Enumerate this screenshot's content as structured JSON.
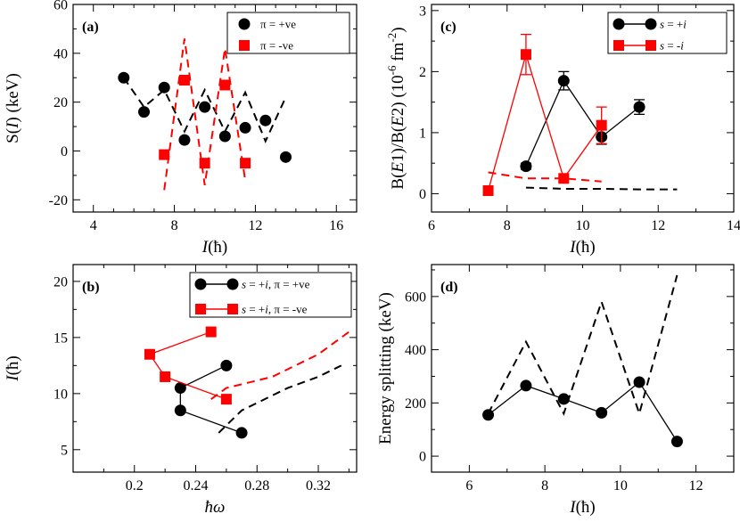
{
  "figure": {
    "width": 830,
    "height": 586
  },
  "chart_data": [
    {
      "id": "a",
      "panel_label": "(a)",
      "type": "scatter",
      "xlabel": "I(ħ)",
      "ylabel": "S(I) (keV)",
      "xlim": [
        3,
        17
      ],
      "ylim": [
        -25,
        60
      ],
      "xticks": [
        4,
        8,
        12,
        16
      ],
      "yticks": [
        -20,
        0,
        20,
        40,
        60
      ],
      "xticks_minor": [
        5,
        6,
        7,
        9,
        10,
        11,
        13,
        14,
        15
      ],
      "yticks_minor": [
        -10,
        10,
        30,
        50
      ],
      "legend_position": "top-right",
      "series": [
        {
          "name": "π = +ve",
          "marker": "circle",
          "color": "#000000",
          "x": [
            5.5,
            6.5,
            7.5,
            8.5,
            9.5,
            10.5,
            11.5,
            12.5,
            13.5
          ],
          "y": [
            30,
            16,
            26,
            4.5,
            18,
            6,
            9.5,
            12.5,
            -2.5
          ]
        },
        {
          "name": "π = -ve",
          "marker": "square",
          "color": "#ff0000",
          "x": [
            7.5,
            8.5,
            9.5,
            10.5,
            11.5
          ],
          "y": [
            -1.5,
            29,
            -5,
            27,
            -5
          ]
        },
        {
          "name": "calc π = +ve",
          "line": "dashed",
          "color": "#000000",
          "legend": false,
          "x": [
            5.5,
            6.5,
            7.5,
            8.5,
            9.5,
            10.5,
            11.5,
            12.5,
            13.5
          ],
          "y": [
            30,
            18,
            25,
            8,
            25,
            8,
            24,
            4,
            22
          ]
        },
        {
          "name": "calc π = -ve",
          "line": "dashed",
          "color": "#ff0000",
          "legend": false,
          "x": [
            7.5,
            8.5,
            9.5,
            10.5,
            11.5
          ],
          "y": [
            -16,
            46,
            -14,
            42,
            -12
          ]
        }
      ]
    },
    {
      "id": "b",
      "panel_label": "(b)",
      "type": "line",
      "xlabel": "ħω",
      "ylabel": "I(ħ)",
      "xlim": [
        0.16,
        0.345
      ],
      "ylim": [
        3,
        21.5
      ],
      "xticks": [
        0.2,
        0.24,
        0.28,
        0.32
      ],
      "yticks": [
        5,
        10,
        15,
        20
      ],
      "xticks_minor": [
        0.18,
        0.22,
        0.26,
        0.3,
        0.34
      ],
      "yticks_minor": [
        7.5,
        12.5,
        17.5
      ],
      "legend_position": "top-right",
      "series": [
        {
          "name": "s = +i, π = +ve",
          "marker": "circle",
          "line": "solid",
          "color": "#000000",
          "x": [
            0.27,
            0.23,
            0.23,
            0.26
          ],
          "y": [
            6.5,
            8.5,
            10.5,
            12.5
          ]
        },
        {
          "name": "s = +i, π = -ve",
          "marker": "square",
          "line": "solid",
          "color": "#ff0000",
          "x": [
            0.26,
            0.22,
            0.21,
            0.25
          ],
          "y": [
            9.5,
            11.5,
            13.5,
            15.5
          ]
        },
        {
          "name": "calc black",
          "line": "dashed",
          "color": "#000000",
          "legend": false,
          "x": [
            0.255,
            0.27,
            0.3,
            0.32,
            0.335
          ],
          "y": [
            6.5,
            8.5,
            10.5,
            11.5,
            12.5
          ]
        },
        {
          "name": "calc red",
          "line": "dashed",
          "color": "#ff0000",
          "legend": false,
          "x": [
            0.25,
            0.26,
            0.29,
            0.32,
            0.34
          ],
          "y": [
            9.5,
            10.5,
            11.5,
            13.5,
            15.5
          ]
        }
      ]
    },
    {
      "id": "c",
      "panel_label": "(c)",
      "type": "line",
      "xlabel": "I(ħ)",
      "ylabel": "B(E1)/B(E2) (10⁻⁶ fm⁻²)",
      "xlim": [
        6,
        14
      ],
      "ylim": [
        -0.3,
        3.1
      ],
      "xticks": [
        6,
        8,
        10,
        12,
        14
      ],
      "yticks": [
        0,
        1,
        2,
        3
      ],
      "xticks_minor": [
        7,
        9,
        11,
        13
      ],
      "yticks_minor": [
        0.5,
        1.5,
        2.5
      ],
      "legend_position": "top-right",
      "series": [
        {
          "name": "s = +i",
          "marker": "circle",
          "line": "solid",
          "color": "#000000",
          "x": [
            8.5,
            9.5,
            10.5,
            11.5
          ],
          "y": [
            0.45,
            1.85,
            0.93,
            1.42
          ],
          "err": [
            0.05,
            0.15,
            0.12,
            0.12
          ]
        },
        {
          "name": "s = -i",
          "marker": "square",
          "line": "solid",
          "color": "#ff0000",
          "x": [
            7.5,
            8.5,
            9.5,
            10.5
          ],
          "y": [
            0.05,
            2.28,
            0.25,
            1.12
          ],
          "err": [
            0.05,
            0.33,
            0.05,
            0.3
          ]
        },
        {
          "name": "calc black",
          "line": "dashed",
          "color": "#000000",
          "legend": false,
          "x": [
            8.5,
            9.5,
            10.5,
            11.5,
            12.5
          ],
          "y": [
            0.1,
            0.08,
            0.08,
            0.07,
            0.07
          ]
        },
        {
          "name": "calc red",
          "line": "dashed",
          "color": "#ff0000",
          "legend": false,
          "x": [
            7.5,
            8.5,
            9.5,
            10.5
          ],
          "y": [
            0.35,
            0.25,
            0.25,
            0.2
          ]
        }
      ]
    },
    {
      "id": "d",
      "panel_label": "(d)",
      "type": "line",
      "xlabel": "I(ħ)",
      "ylabel": "Energy splitting (keV)",
      "xlim": [
        5,
        13
      ],
      "ylim": [
        -60,
        720
      ],
      "xticks": [
        6,
        8,
        10,
        12
      ],
      "yticks": [
        0,
        200,
        400,
        600
      ],
      "xticks_minor": [
        5,
        7,
        9,
        11,
        13
      ],
      "yticks_minor": [
        100,
        300,
        500,
        700
      ],
      "series": [
        {
          "name": "expt",
          "marker": "circle",
          "line": "solid",
          "color": "#000000",
          "legend": false,
          "x": [
            6.5,
            7.5,
            8.5,
            9.5,
            10.5,
            11.5
          ],
          "y": [
            155,
            265,
            215,
            163,
            278,
            55
          ]
        },
        {
          "name": "calc",
          "line": "dashed",
          "color": "#000000",
          "legend": false,
          "x": [
            6.5,
            7.5,
            8.5,
            9.5,
            10.5,
            11.5
          ],
          "y": [
            160,
            430,
            160,
            580,
            160,
            680
          ]
        }
      ]
    }
  ]
}
